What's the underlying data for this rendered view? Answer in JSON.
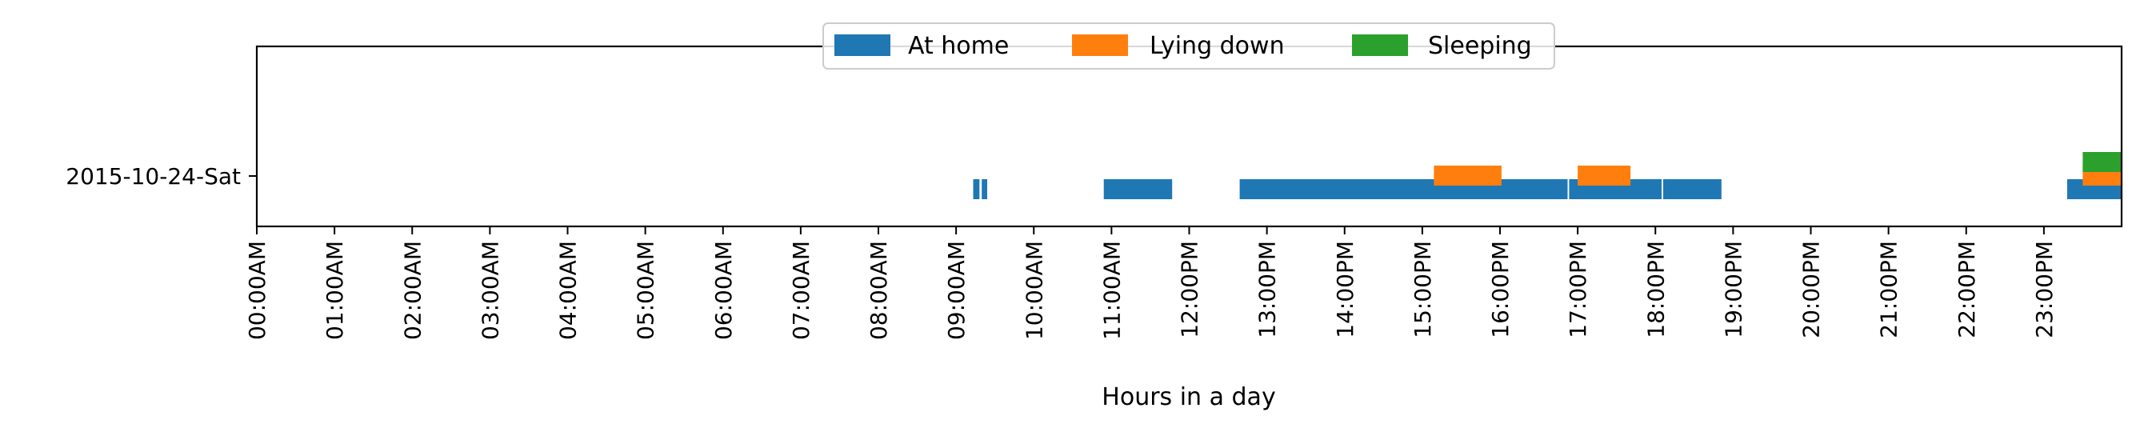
{
  "chart_data": {
    "type": "timeline",
    "xlabel": "Hours in a day",
    "xlim": [
      0,
      24
    ],
    "x_ticks": [
      {
        "value": 0,
        "label": "00:00AM"
      },
      {
        "value": 1,
        "label": "01:00AM"
      },
      {
        "value": 2,
        "label": "02:00AM"
      },
      {
        "value": 3,
        "label": "03:00AM"
      },
      {
        "value": 4,
        "label": "04:00AM"
      },
      {
        "value": 5,
        "label": "05:00AM"
      },
      {
        "value": 6,
        "label": "06:00AM"
      },
      {
        "value": 7,
        "label": "07:00AM"
      },
      {
        "value": 8,
        "label": "08:00AM"
      },
      {
        "value": 9,
        "label": "09:00AM"
      },
      {
        "value": 10,
        "label": "10:00AM"
      },
      {
        "value": 11,
        "label": "11:00AM"
      },
      {
        "value": 12,
        "label": "12:00PM"
      },
      {
        "value": 13,
        "label": "13:00PM"
      },
      {
        "value": 14,
        "label": "14:00PM"
      },
      {
        "value": 15,
        "label": "15:00PM"
      },
      {
        "value": 16,
        "label": "16:00PM"
      },
      {
        "value": 17,
        "label": "17:00PM"
      },
      {
        "value": 18,
        "label": "18:00PM"
      },
      {
        "value": 19,
        "label": "19:00PM"
      },
      {
        "value": 20,
        "label": "20:00PM"
      },
      {
        "value": 21,
        "label": "21:00PM"
      },
      {
        "value": 22,
        "label": "22:00PM"
      },
      {
        "value": 23,
        "label": "23:00PM"
      }
    ],
    "y_categories": [
      "2015-10-24-Sat"
    ],
    "legend_placement": "top-center",
    "grid": false,
    "series": [
      {
        "name": "At home",
        "color": "#1f77b4",
        "intervals": [
          [
            9.22,
            9.3
          ],
          [
            9.33,
            9.4
          ],
          [
            10.9,
            11.78
          ],
          [
            12.65,
            16.87
          ],
          [
            16.89,
            18.08
          ],
          [
            18.1,
            18.85
          ],
          [
            23.3,
            24.0
          ]
        ]
      },
      {
        "name": "Lying down",
        "color": "#ff7f0e",
        "intervals": [
          [
            15.15,
            16.02
          ],
          [
            17.0,
            17.68
          ],
          [
            23.5,
            24.0
          ]
        ]
      },
      {
        "name": "Sleeping",
        "color": "#2ca02c",
        "intervals": [
          [
            23.5,
            24.0
          ]
        ]
      }
    ]
  }
}
